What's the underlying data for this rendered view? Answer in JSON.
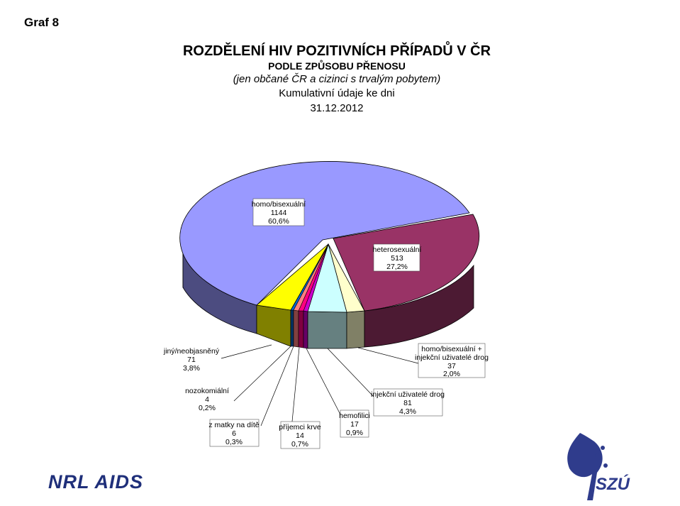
{
  "header": {
    "graf_label": "Graf  8",
    "title": "ROZDĚLENÍ HIV POZITIVNÍCH PŘÍPADŮ V ČR",
    "subtitle": "PODLE ZPŮSOBU PŘENOSU",
    "subtitle2": "(jen občané ČR a cizinci s trvalým pobytem)",
    "subtitle3": "Kumulativní údaje ke dni",
    "date": "31.12.2012"
  },
  "chart_data": {
    "type": "pie",
    "title": "ROZDĚLENÍ HIV POZITIVNÍCH PŘÍPADŮ V ČR",
    "slices": [
      {
        "label": "homo/bisexuální",
        "value": 1144,
        "percent": "60,6%",
        "color": "#9999ff",
        "side_color": "#4c4c80"
      },
      {
        "label": "heterosexuální",
        "value": 513,
        "percent": "27,2%",
        "color": "#993366",
        "side_color": "#4c1a33"
      },
      {
        "label": "homo/bisexuální + injekční uživatelé drog",
        "value": 37,
        "percent": "2,0%",
        "color": "#ffffcc",
        "side_color": "#808066"
      },
      {
        "label": "injekční uživatelé drog",
        "value": 81,
        "percent": "4,3%",
        "color": "#ccffff",
        "side_color": "#668080"
      },
      {
        "label": "hemofilici",
        "value": 17,
        "percent": "0,9%",
        "color": "#cc00cc",
        "side_color": "#660066"
      },
      {
        "label": "příjemci krve",
        "value": 14,
        "percent": "0,7%",
        "color": "#ff0080",
        "side_color": "#800040"
      },
      {
        "label": "z matky na dítě",
        "value": 6,
        "percent": "0,3%",
        "color": "#ff8080",
        "side_color": "#804040"
      },
      {
        "label": "nozokomiální",
        "value": 4,
        "percent": "0,2%",
        "color": "#0066cc",
        "side_color": "#003366"
      },
      {
        "label": "jiný/neobjasněný",
        "value": 71,
        "percent": "3,8%",
        "color": "#ffff00",
        "side_color": "#808000"
      }
    ]
  },
  "labels": {
    "homo": {
      "line1": "homo/bisexuální",
      "line2": "1144",
      "line3": "60,6%"
    },
    "hetero": {
      "line1": "heterosexuální",
      "line2": "513",
      "line3": "27,2%"
    },
    "jiny": {
      "line1": "jiný/neobjasněný",
      "line2": "71",
      "line3": "3,8%"
    },
    "homo_idu": {
      "line1": "homo/bisexuální +",
      "line2": "injekční uživatelé drog",
      "line3": "37",
      "line4": "2,0%"
    },
    "nozo": {
      "line1": "nozokomiální",
      "line2": "4",
      "line3": "0,2%"
    },
    "idu": {
      "line1": "injekční uživatelé drog",
      "line2": "81",
      "line3": "4,3%"
    },
    "hemo": {
      "line1": "hemofilici",
      "line2": "17",
      "line3": "0,9%"
    },
    "matka": {
      "line1": "z matky na dítě",
      "line2": "6",
      "line3": "0,3%"
    },
    "krev": {
      "line1": "příjemci krve",
      "line2": "14",
      "line3": "0,7%"
    }
  },
  "footer": {
    "nrl_logo": "NRL AIDS",
    "szu_logo": "SZÚ",
    "szu_color": "#2f3c8c"
  }
}
